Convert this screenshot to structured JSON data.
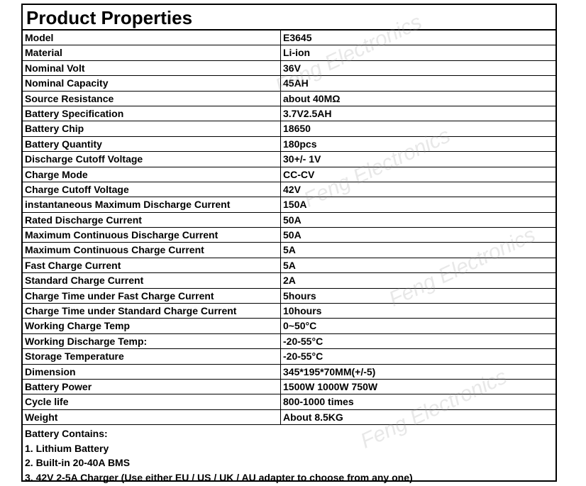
{
  "title": "Product Properties",
  "watermark": "Feng Electronics",
  "properties": [
    {
      "key": "Model",
      "value": "E3645"
    },
    {
      "key": "Material",
      "value": "Li-ion"
    },
    {
      "key": "Nominal Volt",
      "value": "36V"
    },
    {
      "key": "Nominal Capacity",
      "value": "45AH"
    },
    {
      "key": "Source Resistance",
      "value": "about 40MΩ"
    },
    {
      "key": "Battery Specification",
      "value": "3.7V2.5AH"
    },
    {
      "key": "Battery Chip",
      "value": "18650"
    },
    {
      "key": "Battery Quantity",
      "value": "180pcs"
    },
    {
      "key": "Discharge Cutoff Voltage",
      "value": "30+/- 1V"
    },
    {
      "key": "Charge Mode",
      "value": "CC-CV"
    },
    {
      "key": "Charge Cutoff Voltage",
      "value": "42V"
    },
    {
      "key": "instantaneous Maximum Discharge Current",
      "value": "150A"
    },
    {
      "key": "Rated Discharge Current",
      "value": "50A"
    },
    {
      "key": "Maximum Continuous Discharge Current",
      "value": "50A"
    },
    {
      "key": "Maximum Continuous Charge Current",
      "value": "5A"
    },
    {
      "key": "Fast Charge Current",
      "value": "5A"
    },
    {
      "key": "Standard Charge Current",
      "value": "2A"
    },
    {
      "key": "Charge Time under Fast Charge Current",
      "value": "5hours"
    },
    {
      "key": "Charge Time under Standard Charge Current",
      "value": "10hours"
    },
    {
      "key": "Working Charge Temp",
      "value": "0~50°C"
    },
    {
      "key": "Working Discharge Temp:",
      "value": "-20-55°C"
    },
    {
      "key": "Storage Temperature",
      "value": "-20-55°C"
    },
    {
      "key": "Dimension",
      "value": "345*195*70MM(+/-5)"
    },
    {
      "key": "Battery Power",
      "value": "1500W 1000W 750W"
    },
    {
      "key": "Cycle life",
      "value": "800-1000 times"
    },
    {
      "key": "Weight",
      "value": "About 8.5KG"
    }
  ],
  "contains": {
    "heading": "Battery Contains:",
    "items": [
      "1. Lithium Battery",
      "2. Built-in 20-40A BMS",
      "3. 42V 2-5A Charger (Use either EU / US / UK / AU adapter to choose from any one)"
    ]
  }
}
